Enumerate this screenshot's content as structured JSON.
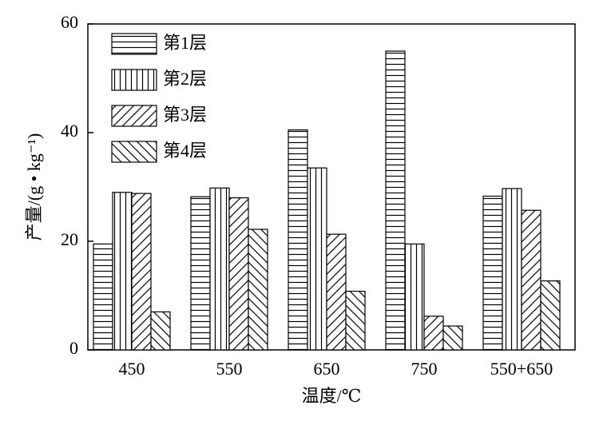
{
  "chart_data": {
    "type": "bar",
    "categories": [
      "450",
      "550",
      "650",
      "750",
      "550+650"
    ],
    "series": [
      {
        "name": "第1层",
        "color": "#000000",
        "hatch": "horizontal",
        "values": [
          19.5,
          28.2,
          40.5,
          55,
          28.3
        ]
      },
      {
        "name": "第2层",
        "color": "#000000",
        "hatch": "vertical",
        "values": [
          29,
          29.8,
          33.5,
          19.5,
          29.7
        ]
      },
      {
        "name": "第3层",
        "color": "#000000",
        "hatch": "forward",
        "values": [
          28.8,
          28,
          21.3,
          6.2,
          25.7
        ]
      },
      {
        "name": "第4层",
        "color": "#000000",
        "hatch": "backward",
        "values": [
          7,
          22.2,
          10.8,
          4.4,
          12.7
        ]
      }
    ],
    "xlabel": "温度/℃",
    "ylabel": "产量/(g • kg⁻¹)",
    "ylim": [
      0,
      60
    ],
    "yticks": [
      0,
      20,
      40,
      60
    ],
    "legend": "upper-left"
  }
}
